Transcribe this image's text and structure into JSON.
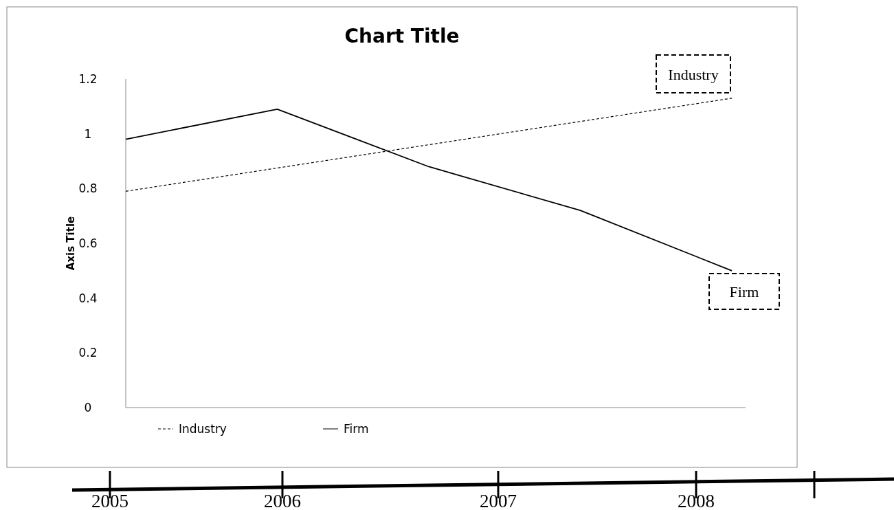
{
  "chart_data": {
    "type": "line",
    "title": "Chart Title",
    "ylabel": "Axis Title",
    "categories": [
      null,
      null,
      null,
      null,
      null
    ],
    "series": [
      {
        "name": "Industry",
        "color": "#000000",
        "line_style": "dashed",
        "values": [
          0.79,
          0.875,
          0.96,
          1.045,
          1.13
        ]
      },
      {
        "name": "Firm",
        "color": "#000000",
        "line_style": "solid",
        "values": [
          0.98,
          1.09,
          0.88,
          0.72,
          0.5
        ]
      }
    ],
    "ylim": [
      0,
      1.2
    ],
    "yticks": [
      0,
      0.2,
      0.4,
      0.6,
      0.8,
      1,
      1.2
    ],
    "grid": false,
    "legend": "bottom",
    "marker": "none",
    "annotations": [
      "Industry",
      "Firm",
      "2005",
      "2006",
      "2007",
      "2008"
    ]
  }
}
